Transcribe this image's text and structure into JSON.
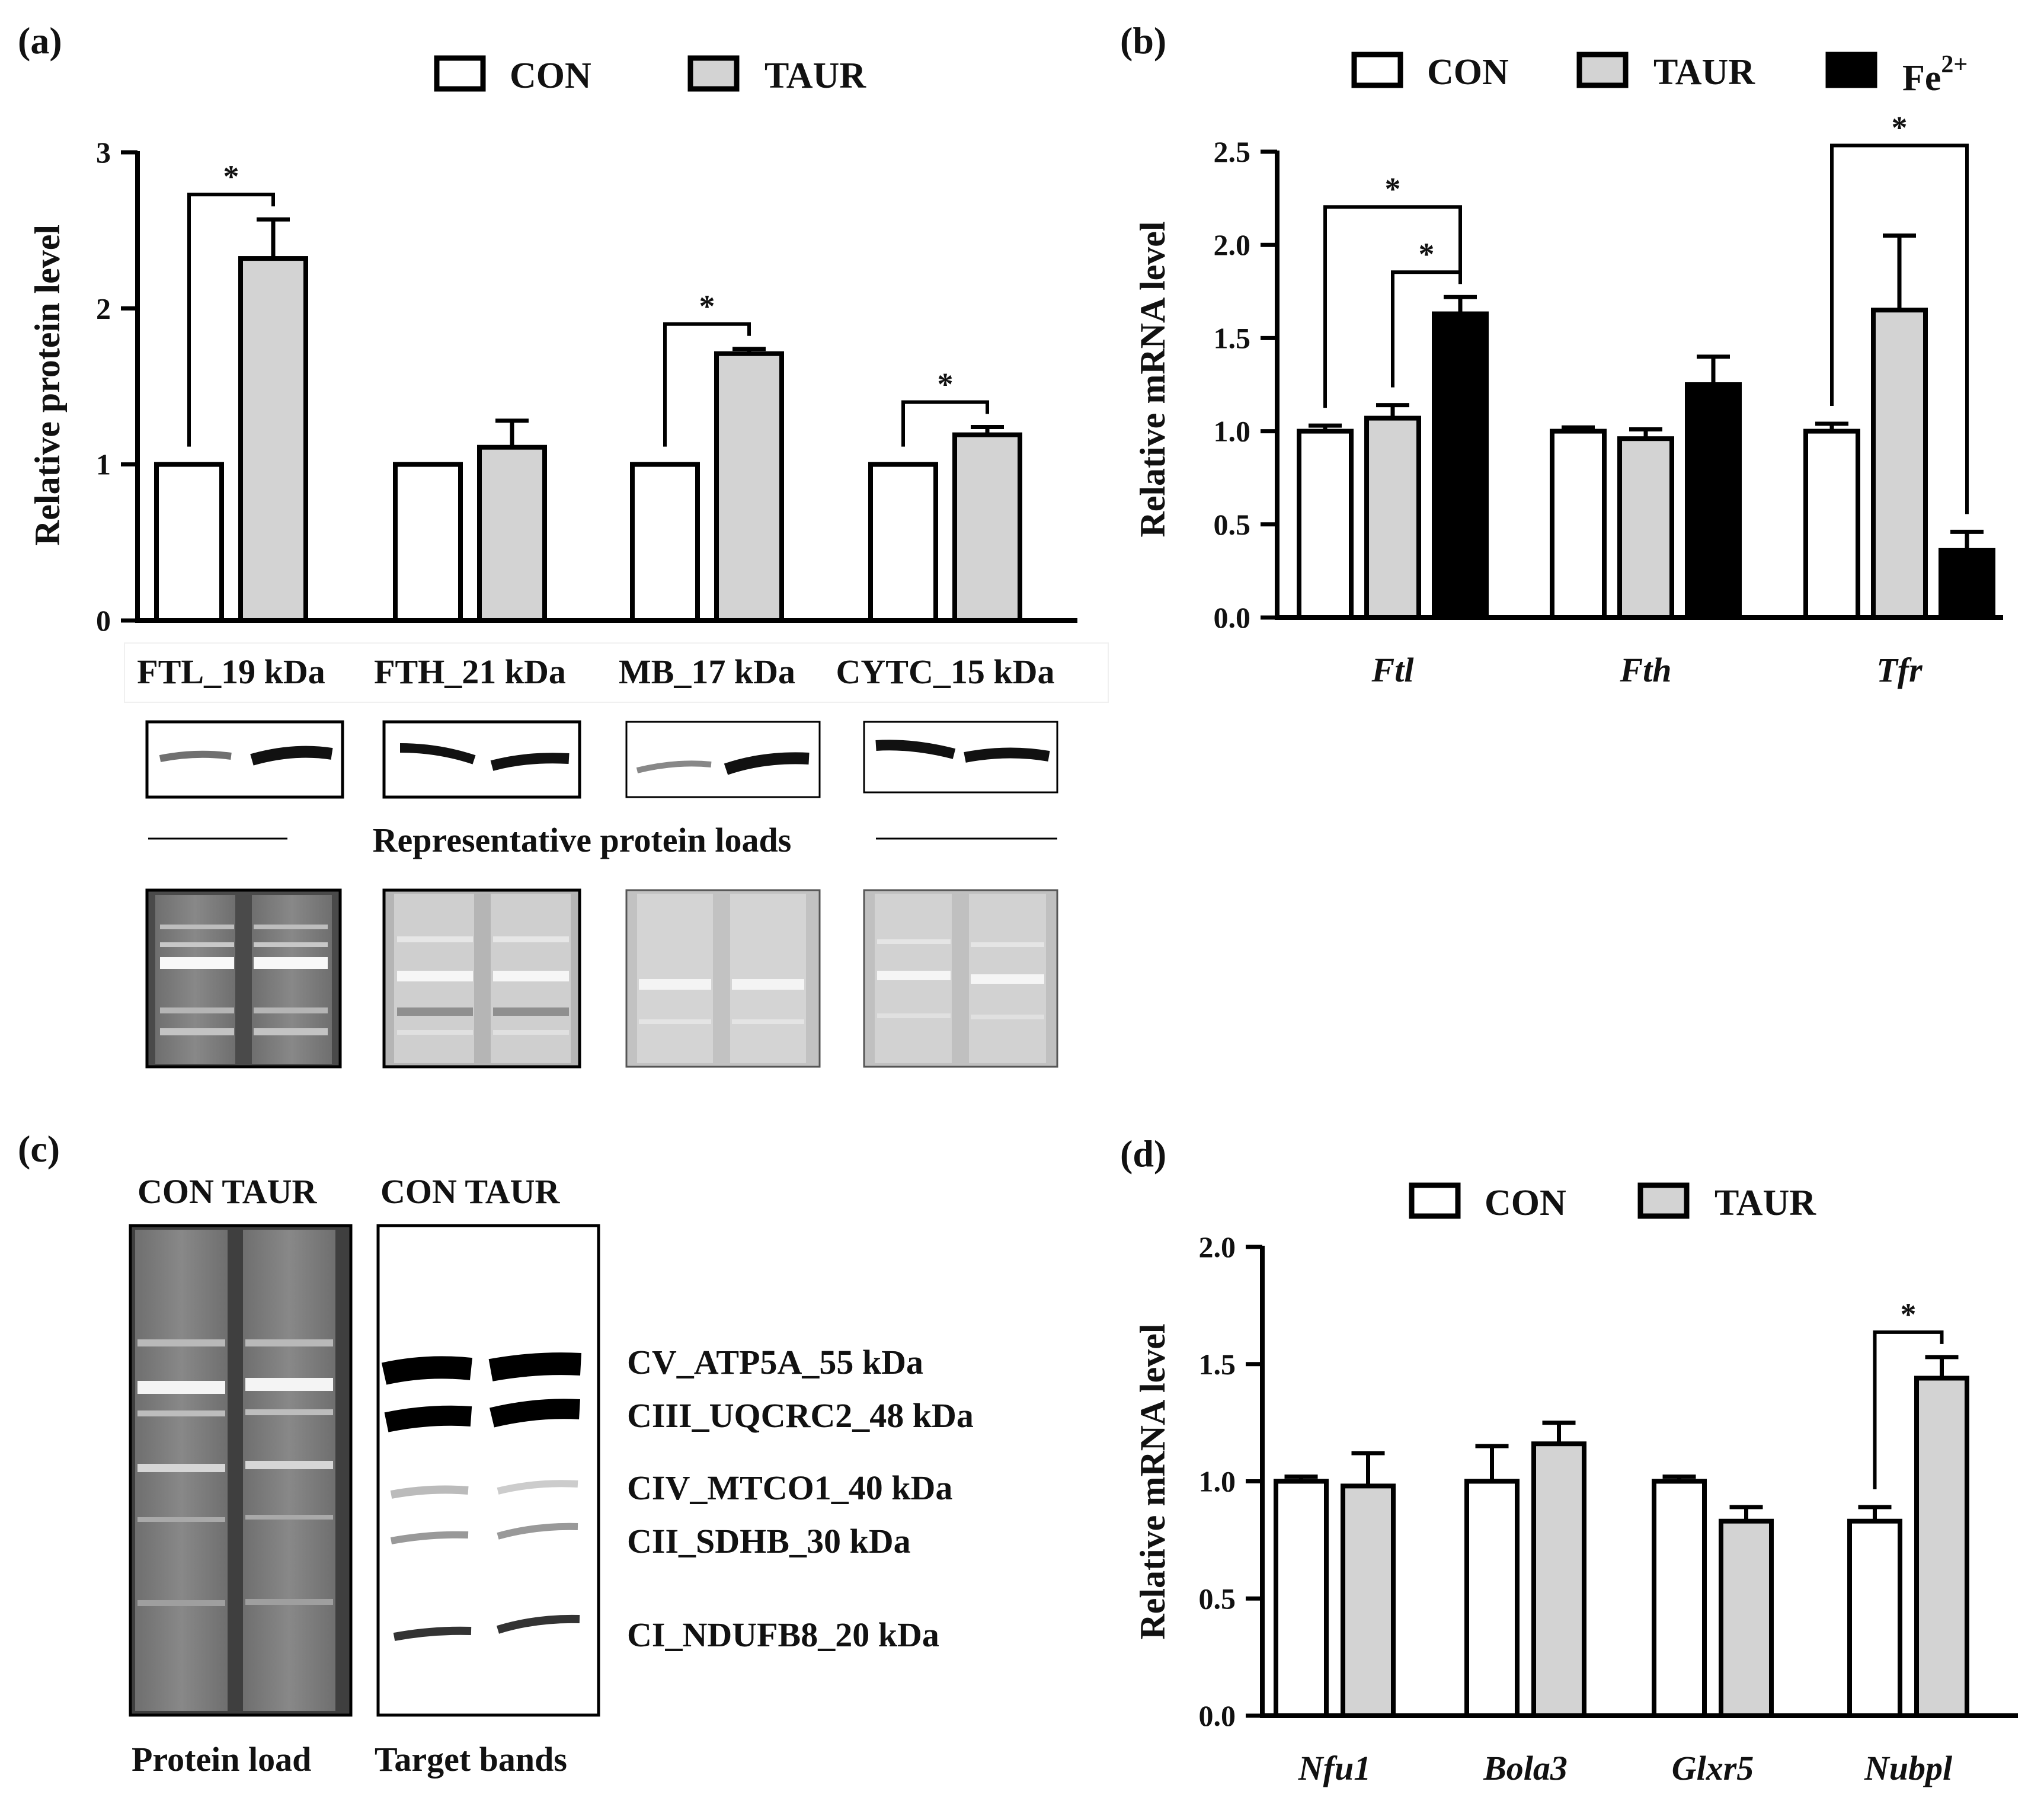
{
  "panels": {
    "a": {
      "letter": "(a)",
      "legend": [
        "CON",
        "TAUR"
      ],
      "blot_caption": "Representative  protein  loads"
    },
    "b": {
      "letter": "(b)",
      "legend": [
        "CON",
        "TAUR",
        "Fe"
      ],
      "legend_superscript": "2+"
    },
    "c": {
      "letter": "(c)",
      "lane_labels_left": "CON TAUR",
      "lane_labels_right": "CON   TAUR",
      "caption_left": "Protein  load",
      "caption_right": "Target bands",
      "band_labels": [
        "CV_ATP5A_55 kDa",
        "CIII_UQCRC2_48 kDa",
        "CIV_MTCO1_40 kDa",
        "CII_SDHB_30 kDa",
        "CI_NDUFB8_20 kDa"
      ]
    },
    "d": {
      "letter": "(d)",
      "legend": [
        "CON",
        "TAUR"
      ]
    }
  },
  "colors": {
    "con": "#ffffff",
    "taur": "#d3d3d3",
    "fe": "#000000",
    "stroke": "#000000"
  },
  "chart_data": [
    {
      "panel": "a",
      "type": "bar",
      "categories": [
        "FTL_19 kDa",
        "FTH_21 kDa",
        "MB_17 kDa",
        "CYTC_15 kDa"
      ],
      "series": [
        {
          "name": "CON",
          "values": [
            1.0,
            1.0,
            1.0,
            1.0
          ],
          "errors": [
            0,
            0,
            0,
            0
          ]
        },
        {
          "name": "TAUR",
          "values": [
            2.32,
            1.11,
            1.71,
            1.19
          ],
          "errors": [
            0.25,
            0.17,
            0.03,
            0.05
          ]
        }
      ],
      "ylabel": "Relative protein level",
      "ylim": [
        0,
        3
      ],
      "yticks": [
        "0",
        "1",
        "2",
        "3"
      ],
      "significance": [
        {
          "category": 0,
          "from": 0,
          "to": 1,
          "label": "*"
        },
        {
          "category": 2,
          "from": 0,
          "to": 1,
          "label": "*"
        },
        {
          "category": 3,
          "from": 0,
          "to": 1,
          "label": "*"
        }
      ]
    },
    {
      "panel": "b",
      "type": "bar",
      "categories": [
        "Ftl",
        "Fth",
        "Tfr"
      ],
      "series": [
        {
          "name": "CON",
          "values": [
            1.0,
            1.0,
            1.0
          ],
          "errors": [
            0.03,
            0.02,
            0.04
          ]
        },
        {
          "name": "TAUR",
          "values": [
            1.07,
            0.96,
            1.65
          ],
          "errors": [
            0.07,
            0.05,
            0.4
          ]
        },
        {
          "name": "Fe2+",
          "values": [
            1.63,
            1.25,
            0.36
          ],
          "errors": [
            0.09,
            0.15,
            0.1
          ]
        }
      ],
      "ylabel": "Relative mRNA level",
      "ylim": [
        0,
        2.5
      ],
      "yticks": [
        "0.0",
        "0.5",
        "1.0",
        "1.5",
        "2.0",
        "2.5"
      ],
      "significance": [
        {
          "category": 0,
          "from": 0,
          "to": 2,
          "label": "*"
        },
        {
          "category": 0,
          "from": 1,
          "to": 2,
          "label": "*"
        },
        {
          "category": 2,
          "from": 0,
          "to": 2,
          "label": "*"
        }
      ]
    },
    {
      "panel": "d",
      "type": "bar",
      "categories": [
        "Nfu1",
        "Bola3",
        "Glxr5",
        "Nubpl"
      ],
      "series": [
        {
          "name": "CON",
          "values": [
            1.0,
            1.0,
            1.0,
            0.83
          ],
          "errors": [
            0.02,
            0.15,
            0.02,
            0.06
          ]
        },
        {
          "name": "TAUR",
          "values": [
            0.98,
            1.16,
            0.83,
            1.44
          ],
          "errors": [
            0.14,
            0.09,
            0.06,
            0.09
          ]
        }
      ],
      "ylabel": "Relative mRNA level",
      "ylim": [
        0,
        2.0
      ],
      "yticks": [
        "0.0",
        "0.5",
        "1.0",
        "1.5",
        "2.0"
      ],
      "significance": [
        {
          "category": 3,
          "from": 0,
          "to": 1,
          "label": "*"
        }
      ]
    }
  ]
}
